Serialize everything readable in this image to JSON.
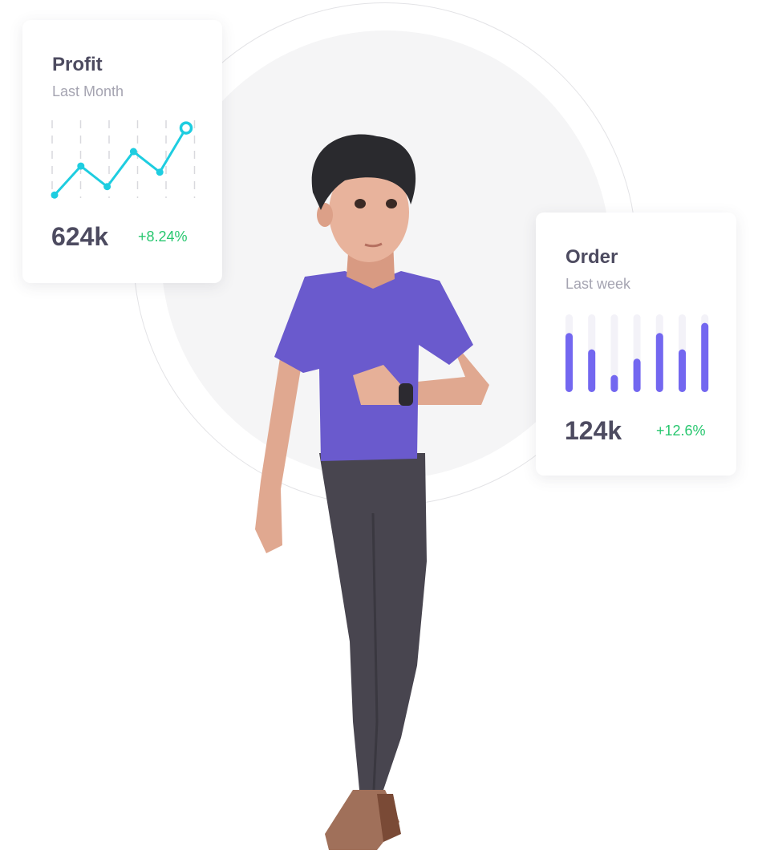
{
  "profit_card": {
    "title": "Profit",
    "subtitle": "Last Month",
    "value": "624k",
    "change": "+8.24%",
    "line_color": "#1ecde0",
    "change_color": "#28c76f"
  },
  "order_card": {
    "title": "Order",
    "subtitle": "Last week",
    "value": "124k",
    "change": "+12.6%",
    "bar_color": "#7367f0",
    "track_color": "#f3f2f8",
    "change_color": "#28c76f"
  },
  "chart_data": [
    {
      "type": "line",
      "series": [
        {
          "values": [
            4,
            42,
            15,
            61,
            34,
            92
          ]
        }
      ],
      "ylim": [
        0,
        100
      ],
      "grid": "vertical dashed"
    },
    {
      "type": "bar",
      "series": [
        {
          "values": [
            76,
            55,
            22,
            43,
            76,
            55,
            89
          ]
        }
      ],
      "ylim": [
        0,
        100
      ]
    }
  ],
  "illustration": {
    "shirt_color": "#6a5acd",
    "pants_color": "#48454f"
  }
}
